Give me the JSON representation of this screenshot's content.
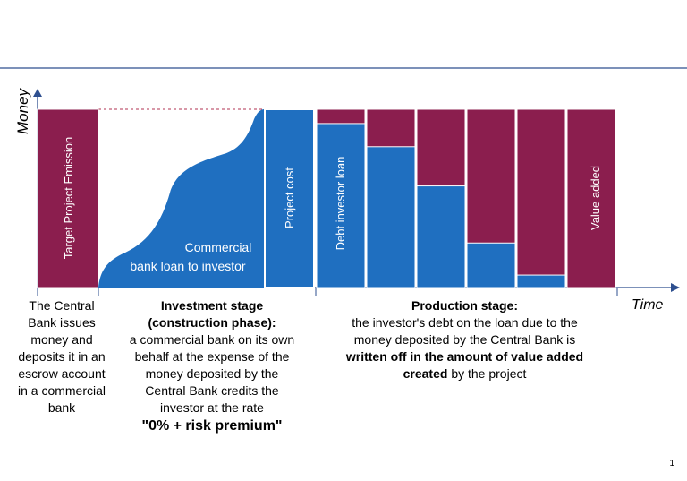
{
  "axes": {
    "y_label": "Money",
    "x_label": "Time"
  },
  "bars": {
    "target_label": "Target Project Emission",
    "project_cost_label": "Project cost",
    "debt_label": "Debt investor loan",
    "value_added_label": "Value added"
  },
  "area": {
    "line1": "Commercial",
    "line2": "bank loan  to investor"
  },
  "production_bars": {
    "comment": "blue = remaining debt, maroon = value added (fractions of full height)",
    "debt_fractions": [
      0.92,
      0.79,
      0.57,
      0.25,
      0.07,
      0
    ]
  },
  "captions": {
    "left": [
      "The Central",
      "Bank issues",
      "money and",
      "deposits it in an",
      "escrow account",
      "in a commercial",
      "bank"
    ],
    "middle": {
      "title1": "Investment stage",
      "title2": "(construction phase):",
      "body": [
        "a commercial bank on its own",
        "behalf at the expense of the",
        "money deposited by the",
        "Central Bank credits the",
        "investor at the rate"
      ],
      "rate": "\"0% + risk premium\""
    },
    "right": {
      "title": "Production stage:",
      "body": [
        "the investor's debt on the loan due to the",
        "money deposited by the Central Bank is"
      ],
      "bold1": "written off in the amount of value added",
      "bold2": "created",
      "tail": " by the project"
    }
  },
  "page_number": "1",
  "colors": {
    "blue": "#1f6fc0",
    "maroon": "#8b1e4e",
    "axis": "#2e4f8f",
    "dash": "#b03050"
  }
}
